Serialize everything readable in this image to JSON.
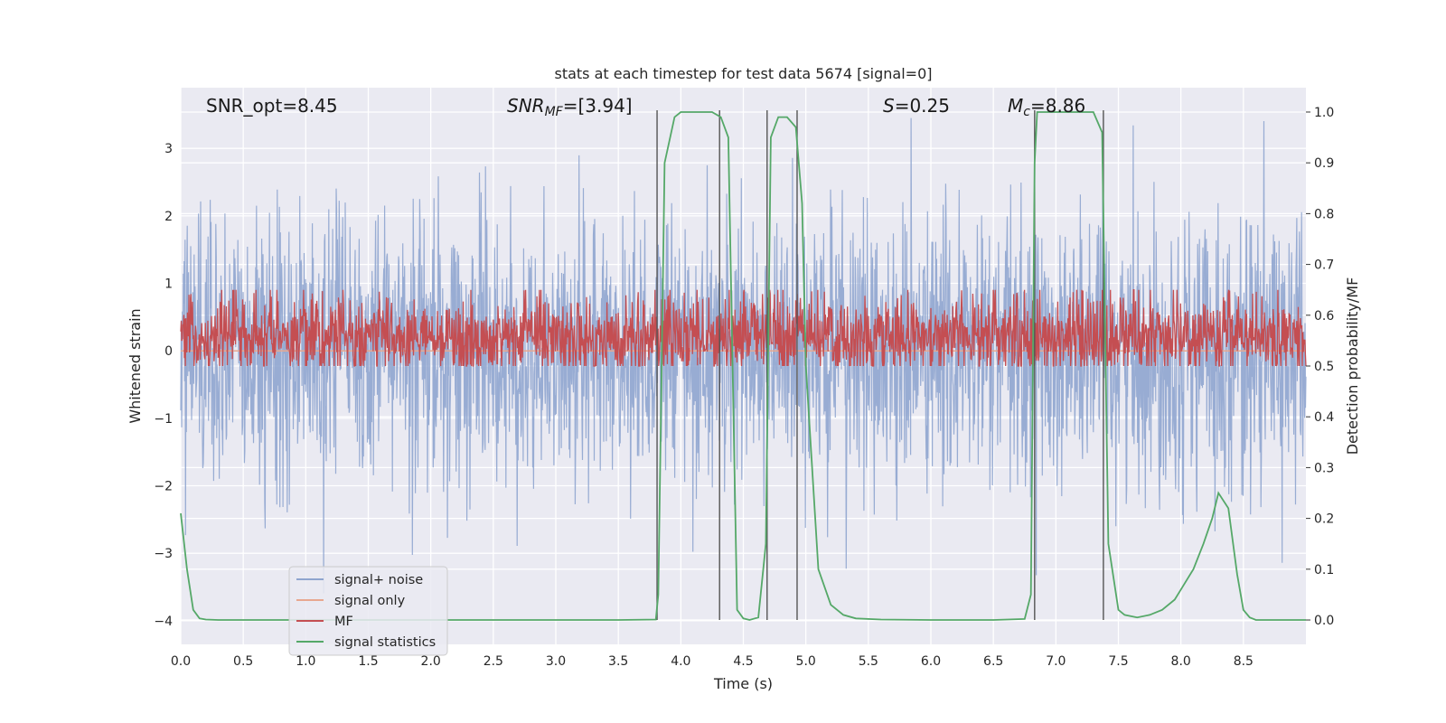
{
  "chart_data": {
    "type": "line",
    "title": "stats at each timestep for test data 5674 [signal=0]",
    "xlabel": "Time (s)",
    "ylabel_left": "Whitened strain",
    "ylabel_right": "Detection probability/MF",
    "xlim": [
      0.0,
      9.0
    ],
    "ylim_left": [
      -4.35,
      3.9
    ],
    "ylim_right": [
      -0.048,
      1.048
    ],
    "x_ticks": [
      "0.0",
      "0.5",
      "1.0",
      "1.5",
      "2.0",
      "2.5",
      "3.0",
      "3.5",
      "4.0",
      "4.5",
      "5.0",
      "5.5",
      "6.0",
      "6.5",
      "7.0",
      "7.5",
      "8.0",
      "8.5"
    ],
    "y_ticks_left": [
      "−4",
      "−3",
      "−2",
      "−1",
      "0",
      "1",
      "2",
      "3"
    ],
    "y_ticks_right": [
      "0.0",
      "0.1",
      "0.2",
      "0.3",
      "0.4",
      "0.5",
      "0.6",
      "0.7",
      "0.8",
      "0.9",
      "1.0"
    ],
    "grid": true,
    "legend_position": "lower-left",
    "annotations": {
      "snr_opt": "SNR_opt=8.45",
      "snr_mf_main": "SNR",
      "snr_mf_sub": "MF",
      "snr_mf_value": "=[3.94]",
      "s_main": "S",
      "s_value": "=0.25",
      "mc_main": "M",
      "mc_sub": "c",
      "mc_value": "=8.86"
    },
    "series": [
      {
        "name": "signal+ noise",
        "axis": "left",
        "color": "#8fa5cf",
        "description_range": [
          -3.6,
          3.45
        ],
        "envelope_std": 1.0
      },
      {
        "name": "signal only",
        "axis": "left",
        "color": "#e8a890",
        "x": [
          0.0,
          9.0
        ],
        "y": [
          0.0,
          0.0
        ]
      },
      {
        "name": "MF",
        "axis": "left",
        "color": "#c44e52",
        "description_range": [
          0.0,
          1.0
        ],
        "mean": 0.3
      },
      {
        "name": "signal statistics",
        "axis": "right",
        "color": "#55a868",
        "x": [
          0.0,
          0.05,
          0.1,
          0.15,
          0.2,
          0.3,
          0.5,
          1.0,
          2.0,
          3.0,
          3.5,
          3.8,
          3.82,
          3.87,
          3.95,
          4.0,
          4.1,
          4.25,
          4.32,
          4.38,
          4.45,
          4.5,
          4.55,
          4.62,
          4.68,
          4.72,
          4.78,
          4.85,
          4.92,
          4.97,
          5.0,
          5.1,
          5.2,
          5.3,
          5.4,
          5.6,
          6.0,
          6.5,
          6.75,
          6.8,
          6.83,
          6.85,
          6.9,
          7.0,
          7.1,
          7.2,
          7.3,
          7.37,
          7.42,
          7.5,
          7.55,
          7.65,
          7.75,
          7.85,
          7.95,
          8.0,
          8.1,
          8.18,
          8.25,
          8.3,
          8.38,
          8.45,
          8.5,
          8.55,
          8.6,
          8.7,
          9.0
        ],
        "y": [
          0.21,
          0.1,
          0.02,
          0.003,
          0.001,
          0.0,
          0.0,
          0.0,
          0.0,
          0.0,
          0.0,
          0.001,
          0.05,
          0.9,
          0.99,
          1.0,
          1.0,
          1.0,
          0.99,
          0.95,
          0.02,
          0.003,
          0.0,
          0.005,
          0.15,
          0.95,
          0.99,
          0.99,
          0.97,
          0.82,
          0.5,
          0.1,
          0.03,
          0.01,
          0.003,
          0.001,
          0.0,
          0.0,
          0.002,
          0.05,
          0.9,
          1.0,
          1.0,
          1.0,
          1.0,
          1.0,
          1.0,
          0.96,
          0.15,
          0.02,
          0.01,
          0.005,
          0.01,
          0.02,
          0.04,
          0.06,
          0.1,
          0.15,
          0.2,
          0.25,
          0.22,
          0.09,
          0.02,
          0.005,
          0.0,
          0.0,
          0.0
        ]
      }
    ],
    "vertical_lines_x": [
      3.81,
      4.31,
      4.69,
      4.93,
      6.83,
      7.38
    ]
  }
}
